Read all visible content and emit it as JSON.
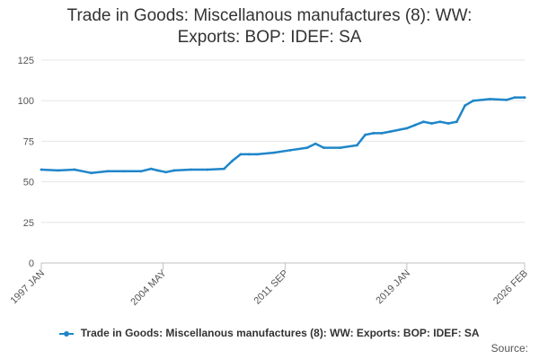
{
  "chart_data": {
    "type": "line",
    "title_lines": [
      "Trade in Goods: Miscellanous manufactures (8): WW:",
      "Exports: BOP: IDEF: SA"
    ],
    "xlabel": "",
    "ylabel": "",
    "x_range": [
      1997.0,
      2026.09
    ],
    "ylim": [
      0,
      125
    ],
    "y_ticks": [
      0,
      25,
      50,
      75,
      100,
      125
    ],
    "x_ticks": [
      {
        "label": "1997 JAN",
        "x": 1997.0
      },
      {
        "label": "2004 MAY",
        "x": 2004.33
      },
      {
        "label": "2011 SEP",
        "x": 2011.67
      },
      {
        "label": "2019 JAN",
        "x": 2019.0
      },
      {
        "label": "2026 FEB",
        "x": 2026.09
      }
    ],
    "grid": true,
    "legend_position": "bottom",
    "series": [
      {
        "name": "Trade in Goods: Miscellanous manufactures (8): WW: Exports: BOP: IDEF: SA",
        "color": "#1f86c9",
        "x": [
          1997.0,
          1998.0,
          1999.0,
          2000.0,
          2001.0,
          2002.0,
          2003.0,
          2003.6,
          2004.0,
          2004.5,
          2005.0,
          2006.0,
          2007.0,
          2008.0,
          2008.5,
          2009.0,
          2009.5,
          2010.0,
          2011.0,
          2012.0,
          2013.0,
          2013.5,
          2014.0,
          2015.0,
          2016.0,
          2016.5,
          2017.0,
          2017.5,
          2018.0,
          2019.0,
          2019.5,
          2020.0,
          2020.5,
          2021.0,
          2021.5,
          2022.0,
          2022.5,
          2023.0,
          2024.0,
          2025.0,
          2025.5,
          2026.09
        ],
        "values": [
          57.5,
          57.0,
          57.5,
          55.5,
          56.5,
          56.5,
          56.5,
          58.0,
          57.0,
          56.0,
          57.0,
          57.5,
          57.5,
          58.0,
          63.0,
          67.0,
          67.0,
          67.0,
          68.0,
          69.5,
          71.0,
          73.5,
          71.0,
          71.0,
          72.5,
          79.0,
          80.0,
          80.0,
          81.0,
          83.0,
          85.0,
          87.0,
          86.0,
          87.0,
          86.0,
          87.0,
          97.0,
          100.0,
          101.0,
          100.5,
          102.0,
          102.0
        ]
      }
    ]
  },
  "source_label": "Source:"
}
